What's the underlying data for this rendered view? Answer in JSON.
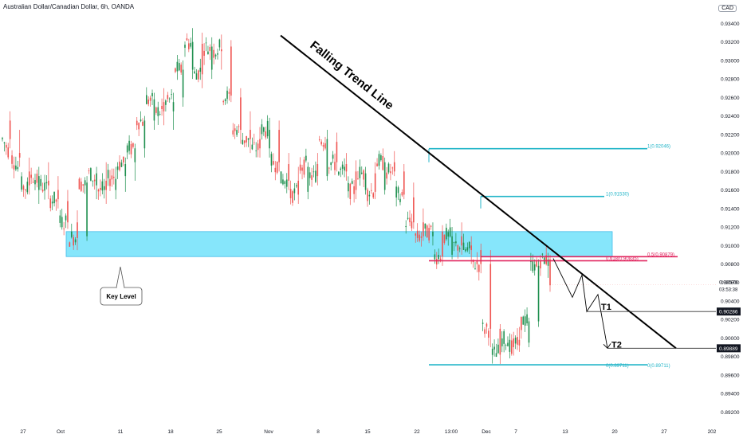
{
  "header": {
    "symbol": "Australian Dollar/Canadian Dollar, 6h, OANDA",
    "currency": "CAD"
  },
  "chart_data": {
    "type": "candlestick",
    "title": "",
    "ylim": [
      0.891,
      0.9355
    ],
    "y_ticks": [
      "0.93400",
      "0.93200",
      "0.93000",
      "0.92800",
      "0.92600",
      "0.92400",
      "0.92200",
      "0.92000",
      "0.91800",
      "0.91600",
      "0.91400",
      "0.91200",
      "0.91000",
      "0.90800",
      "0.90600",
      "0.90400",
      "0.90200",
      "0.90000",
      "0.89800",
      "0.89600",
      "0.89400",
      "0.89200"
    ],
    "x_ticks": [
      "27",
      "Oct",
      "11",
      "18",
      "25",
      "Nov",
      "8",
      "15",
      "22",
      "13:00",
      "Dec",
      "7",
      "13",
      "20",
      "27",
      "202"
    ],
    "ohlc_anchors": {
      "points": [
        [
          0.9235,
          0.9245,
          0.9205,
          0.9215
        ],
        [
          0.92,
          0.9225,
          0.9185,
          0.9195
        ],
        [
          0.918,
          0.9195,
          0.9155,
          0.9165
        ],
        [
          0.916,
          0.9185,
          0.9145,
          0.9175
        ],
        [
          0.917,
          0.919,
          0.915,
          0.9165
        ],
        [
          0.916,
          0.9175,
          0.914,
          0.915
        ],
        [
          0.9148,
          0.916,
          0.9118,
          0.9125
        ],
        [
          0.9125,
          0.9138,
          0.9095,
          0.9108
        ],
        [
          0.911,
          0.9175,
          0.9105,
          0.9168
        ],
        [
          0.9165,
          0.9185,
          0.915,
          0.9178
        ],
        [
          0.917,
          0.919,
          0.9145,
          0.916
        ],
        [
          0.916,
          0.9185,
          0.915,
          0.9172
        ],
        [
          0.9175,
          0.9195,
          0.9158,
          0.9188
        ],
        [
          0.919,
          0.921,
          0.917,
          0.9205
        ],
        [
          0.9205,
          0.924,
          0.9195,
          0.9235
        ],
        [
          0.9235,
          0.9265,
          0.9225,
          0.9258
        ],
        [
          0.9255,
          0.927,
          0.923,
          0.9245
        ],
        [
          0.9245,
          0.9265,
          0.9225,
          0.9255
        ],
        [
          0.926,
          0.93,
          0.925,
          0.929
        ],
        [
          0.929,
          0.9335,
          0.928,
          0.932
        ],
        [
          0.9318,
          0.933,
          0.927,
          0.9285
        ],
        [
          0.929,
          0.9325,
          0.928,
          0.9315
        ],
        [
          0.9312,
          0.9328,
          0.929,
          0.931
        ],
        [
          0.9315,
          0.9322,
          0.9255,
          0.9262
        ],
        [
          0.926,
          0.927,
          0.921,
          0.9225
        ],
        [
          0.9225,
          0.9245,
          0.92,
          0.9215
        ],
        [
          0.9215,
          0.9228,
          0.9195,
          0.9205
        ],
        [
          0.9205,
          0.9238,
          0.9195,
          0.9225
        ],
        [
          0.9225,
          0.9235,
          0.918,
          0.919
        ],
        [
          0.9188,
          0.92,
          0.916,
          0.917
        ],
        [
          0.917,
          0.9185,
          0.9145,
          0.9155
        ],
        [
          0.9158,
          0.919,
          0.915,
          0.9185
        ],
        [
          0.9188,
          0.92,
          0.9165,
          0.9175
        ],
        [
          0.9175,
          0.9225,
          0.917,
          0.9215
        ],
        [
          0.9212,
          0.9222,
          0.918,
          0.919
        ],
        [
          0.9188,
          0.92,
          0.917,
          0.918
        ],
        [
          0.918,
          0.9192,
          0.915,
          0.916
        ],
        [
          0.916,
          0.9185,
          0.9155,
          0.9178
        ],
        [
          0.9178,
          0.919,
          0.915,
          0.9158
        ],
        [
          0.916,
          0.9195,
          0.9155,
          0.919
        ],
        [
          0.919,
          0.9202,
          0.9175,
          0.918
        ],
        [
          0.918,
          0.9188,
          0.915,
          0.9155
        ],
        [
          0.9152,
          0.9168,
          0.9118,
          0.9125
        ],
        [
          0.9125,
          0.914,
          0.9105,
          0.911
        ],
        [
          0.911,
          0.9125,
          0.91,
          0.9115
        ],
        [
          0.9115,
          0.9122,
          0.9078,
          0.9088
        ],
        [
          0.909,
          0.912,
          0.9085,
          0.911
        ],
        [
          0.911,
          0.9125,
          0.909,
          0.91
        ],
        [
          0.91,
          0.911,
          0.908,
          0.9095
        ],
        [
          0.9095,
          0.9102,
          0.907,
          0.908
        ],
        [
          0.908,
          0.9095,
          0.899,
          0.901
        ],
        [
          0.901,
          0.9015,
          0.8972,
          0.8982
        ],
        [
          0.8985,
          0.9005,
          0.8978,
          0.8998
        ],
        [
          0.8998,
          0.9012,
          0.8985,
          0.8992
        ],
        [
          0.8995,
          0.9022,
          0.899,
          0.9018
        ],
        [
          0.9018,
          0.9085,
          0.9012,
          0.9078
        ],
        [
          0.9078,
          0.9092,
          0.9065,
          0.9085
        ],
        [
          0.9085,
          0.909,
          0.905,
          0.9057
        ]
      ]
    },
    "key_level": {
      "low": 0.9088,
      "high": 0.9115,
      "label": "Key Level"
    },
    "trend_line": {
      "label": "Falling Trend Line"
    },
    "fib_levels": [
      {
        "label": "1(0.92046)",
        "value": 0.92046,
        "color": "#22b5c8"
      },
      {
        "label": "1(0.91530)",
        "value": 0.9153,
        "color": "#22b5c8"
      },
      {
        "label": "0.618(0.90835)",
        "value": 0.90835,
        "color": "#e0245e"
      },
      {
        "label": "0.5(0.90879)",
        "value": 0.90879,
        "color": "#e0245e"
      },
      {
        "label": "0(0.89711)",
        "value": 0.89711,
        "color": "#22b5c8"
      },
      {
        "label": "0(0.89711)",
        "value": 0.89711,
        "color": "#22b5c8"
      }
    ],
    "targets": [
      {
        "label": "T1",
        "value": 0.90286
      },
      {
        "label": "T2",
        "value": 0.89889
      }
    ],
    "price_labels": {
      "current": "0.90576",
      "countdown": "03:53:38",
      "t1": "0.90286",
      "t2": "0.89889"
    },
    "colors": {
      "up": "#26a69a",
      "up_dark": "#1e8f4e",
      "down": "#ef5350",
      "zone": "#80e5fb",
      "zone_border": "#3bb8e8"
    }
  }
}
